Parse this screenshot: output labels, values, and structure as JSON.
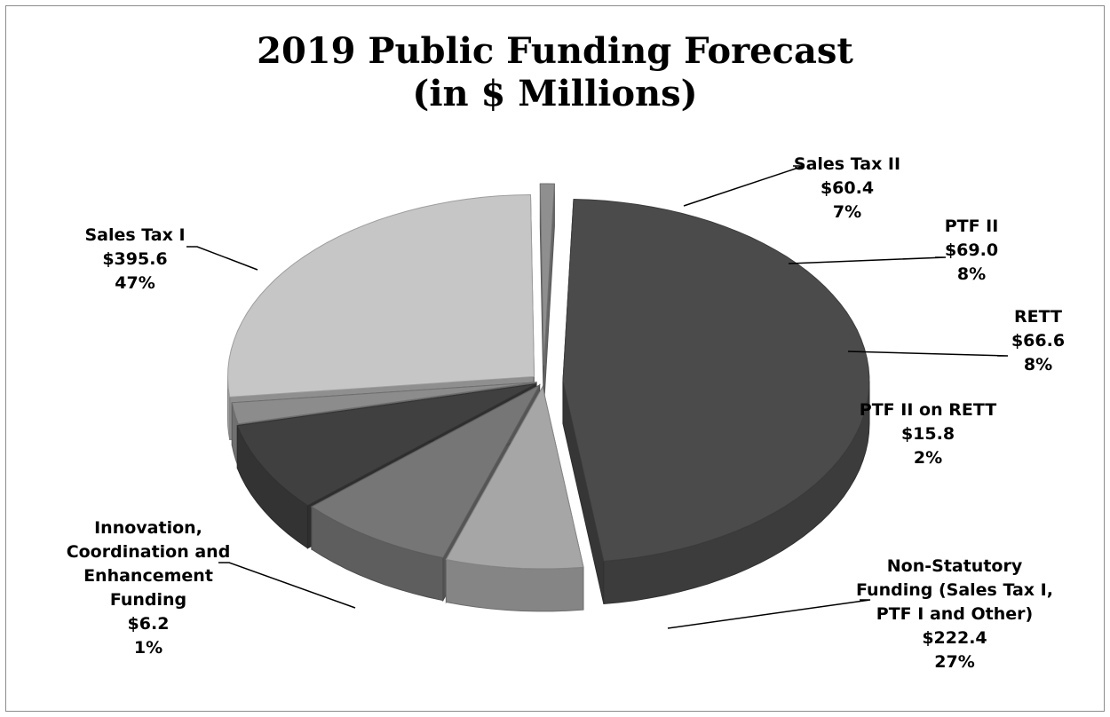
{
  "chart_data": {
    "type": "pie",
    "title": "2019 Public Funding Forecast (in $ Millions)",
    "title_lines": [
      "2019 Public Funding Forecast",
      "(in $ Millions)"
    ],
    "units": "$ Millions",
    "style": "3d-exploded",
    "slices": [
      {
        "key": "sales_tax_i",
        "name_lines": [
          "Sales Tax I"
        ],
        "value": 395.6,
        "value_text": "$395.6",
        "percent": 47,
        "percent_text": "47%",
        "color": "#4b4b4b"
      },
      {
        "key": "sales_tax_ii",
        "name_lines": [
          "Sales Tax II"
        ],
        "value": 60.4,
        "value_text": "$60.4",
        "percent": 7,
        "percent_text": "7%",
        "color": "#a6a6a6"
      },
      {
        "key": "ptf_ii",
        "name_lines": [
          "PTF II"
        ],
        "value": 69.0,
        "value_text": "$69.0",
        "percent": 8,
        "percent_text": "8%",
        "color": "#767676"
      },
      {
        "key": "rett",
        "name_lines": [
          "RETT"
        ],
        "value": 66.6,
        "value_text": "$66.6",
        "percent": 8,
        "percent_text": "8%",
        "color": "#404040"
      },
      {
        "key": "ptf_ii_on_rett",
        "name_lines": [
          "PTF II on RETT"
        ],
        "value": 15.8,
        "value_text": "$15.8",
        "percent": 2,
        "percent_text": "2%",
        "color": "#8c8c8c"
      },
      {
        "key": "non_statutory",
        "name_lines": [
          "Non-Statutory",
          "Funding (Sales Tax I,",
          "PTF I and Other)"
        ],
        "value": 222.4,
        "value_text": "$222.4",
        "percent": 27,
        "percent_text": "27%",
        "color": "#c6c6c6"
      },
      {
        "key": "innovation",
        "name_lines": [
          "Innovation,",
          "Coordination and",
          "Enhancement",
          "Funding"
        ],
        "value": 6.2,
        "value_text": "$6.2",
        "percent": 1,
        "percent_text": "1%",
        "color": "#8f8f8f"
      }
    ]
  }
}
